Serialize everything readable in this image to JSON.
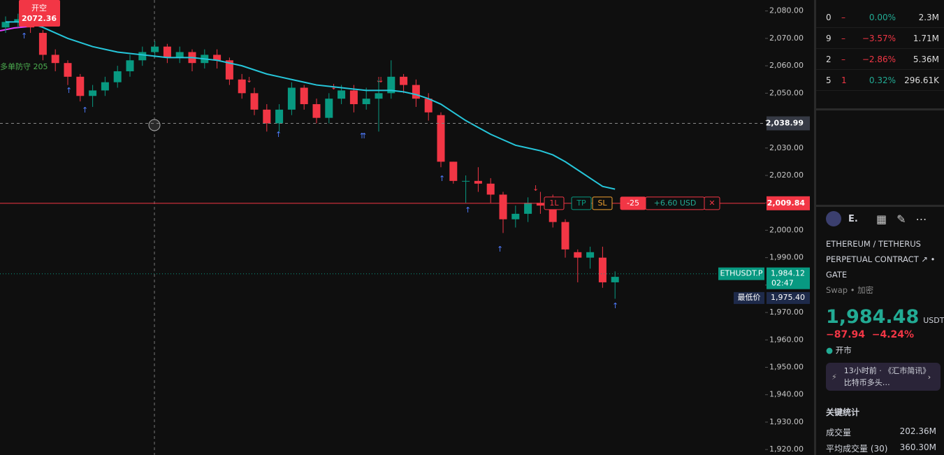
{
  "watchlist": [
    {
      "symbol": "0",
      "dash": "–",
      "pct": "0.00%",
      "vol": "2.3M"
    },
    {
      "symbol": "9",
      "dash": "–",
      "pct": "−3.57%",
      "vol": "1.71M"
    },
    {
      "symbol": "2",
      "dash": "–",
      "pct": "−2.86%",
      "vol": "5.36M"
    },
    {
      "symbol": "5",
      "dash": "1",
      "pct": "0.32%",
      "vol": "296.61K"
    }
  ],
  "chart_data": {
    "type": "candlestick",
    "ylim": [
      1918,
      2084
    ],
    "yticks": [
      {
        "value": 2080,
        "label": "2,080.00"
      },
      {
        "value": 2070,
        "label": "2,070.00"
      },
      {
        "value": 2060,
        "label": "2,060.00"
      },
      {
        "value": 2050,
        "label": "2,050.00"
      },
      {
        "value": 2040,
        "label": "2,040.00"
      },
      {
        "value": 2030,
        "label": "2,030.00"
      },
      {
        "value": 2020,
        "label": "2,020.00"
      },
      {
        "value": 2010,
        "label": "2,010.00"
      },
      {
        "value": 2000,
        "label": "2,000.00"
      },
      {
        "value": 1990,
        "label": "1,990.00"
      },
      {
        "value": 1980,
        "label": "1,980.00"
      },
      {
        "value": 1970,
        "label": "1,970.00"
      },
      {
        "value": 1960,
        "label": "1,960.00"
      },
      {
        "value": 1950,
        "label": "1,950.00"
      },
      {
        "value": 1940,
        "label": "1,940.00"
      },
      {
        "value": 1930,
        "label": "1,930.00"
      },
      {
        "value": 1920,
        "label": "1,920.00"
      }
    ],
    "open": [
      2074,
      2076,
      2077,
      2072,
      2064,
      2061,
      2056,
      2049,
      2051,
      2054,
      2058,
      2062,
      2065,
      2067,
      2063,
      2065,
      2061,
      2064,
      2062,
      2055,
      2050,
      2044,
      2039,
      2044,
      2052,
      2046,
      2041,
      2048,
      2051,
      2046,
      2048,
      2050,
      2056,
      2053,
      2048,
      2042,
      2025,
      2018,
      2018,
      2017,
      2013,
      2004,
      2006,
      2010,
      2009,
      2003,
      1992,
      1990,
      1990,
      1981
    ],
    "high": [
      2078,
      2079,
      2079,
      2073,
      2066,
      2062,
      2057,
      2053,
      2056,
      2060,
      2064,
      2067,
      2069,
      2068,
      2067,
      2066,
      2066,
      2066,
      2063,
      2057,
      2052,
      2046,
      2046,
      2054,
      2053,
      2048,
      2050,
      2053,
      2053,
      2052,
      2055,
      2062,
      2057,
      2055,
      2050,
      2043,
      2025,
      2020,
      2023,
      2019,
      2014,
      2009,
      2012,
      2014,
      2013,
      2004,
      1993,
      1994,
      1994,
      1985
    ],
    "low": [
      2072,
      2074,
      2072,
      2062,
      2058,
      2053,
      2047,
      2045,
      2049,
      2052,
      2056,
      2060,
      2063,
      2061,
      2061,
      2058,
      2059,
      2059,
      2053,
      2048,
      2042,
      2036,
      2036,
      2042,
      2044,
      2039,
      2039,
      2046,
      2043,
      2044,
      2036,
      2048,
      2050,
      2045,
      2040,
      2023,
      2017,
      2010,
      2014,
      2010,
      1999,
      2001,
      2003,
      2006,
      2001,
      1990,
      1981,
      1986,
      1979,
      1975
    ],
    "close": [
      2076,
      2077,
      2074,
      2064,
      2061,
      2056,
      2049,
      2051,
      2054,
      2058,
      2062,
      2065,
      2067,
      2063,
      2065,
      2061,
      2064,
      2062,
      2055,
      2050,
      2044,
      2039,
      2044,
      2052,
      2046,
      2041,
      2048,
      2051,
      2046,
      2048,
      2050,
      2056,
      2053,
      2048,
      2043,
      2025,
      2018,
      2018,
      2017,
      2013,
      2004,
      2006,
      2010,
      2009,
      2003,
      1993,
      1990,
      1992,
      1981,
      1983
    ],
    "up_color": "#089981",
    "down_color": "#f23645",
    "ma": {
      "color": "#26c6da",
      "values": [
        2076,
        2076,
        2075.5,
        2074,
        2072,
        2070,
        2068.5,
        2067,
        2066,
        2065,
        2064.5,
        2064,
        2063.5,
        2063,
        2063,
        2063,
        2062.5,
        2062,
        2061,
        2060,
        2058.5,
        2057,
        2056,
        2055,
        2054,
        2053,
        2052.5,
        2052,
        2051.5,
        2051,
        2051,
        2051,
        2050.5,
        2049.5,
        2048,
        2046,
        2043,
        2040,
        2037.5,
        2035,
        2033,
        2031,
        2030,
        2029,
        2027.5,
        2025,
        2022,
        2019,
        2016,
        2015
      ]
    },
    "crosshair": {
      "value": 2038.99,
      "label": "2,038.99"
    },
    "position_line": {
      "value": 2009.84,
      "label": "2,009.84"
    },
    "position": {
      "side": "1L",
      "tp": "TP",
      "sl": "SL",
      "qty": "-25",
      "pnl": "+6.60 USD",
      "close": "✕"
    },
    "last": {
      "symbol": "ETHUSDT.P",
      "price": {
        "value": 1984.12,
        "label": "1,984.12"
      },
      "countdown": "02:47"
    },
    "low_marker": {
      "name": "最低价",
      "price": {
        "value": 1975.4,
        "label": "1,975.40"
      }
    },
    "annotations": {
      "entry": "开空",
      "entry_price": "2072.36",
      "defense": "多单防守  205"
    }
  },
  "right_panel": {
    "symbol_short": "E.",
    "desc1": "ETHEREUM / TETHERUS",
    "desc2": "PERPETUAL CONTRACT ↗ •",
    "exchange": "GATE",
    "market": "Swap • 加密",
    "price": "1,984.48",
    "currency": "USDT",
    "change": "−87.94",
    "change_pct": "−4.24%",
    "status": "开市",
    "news": "13小时前 · 《汇市简讯》比特币多头…",
    "stats_title": "关键统计",
    "stats": [
      {
        "label": "成交量",
        "value": "202.36M"
      },
      {
        "label": "平均成交量 (30)",
        "value": "360.30M"
      }
    ]
  }
}
